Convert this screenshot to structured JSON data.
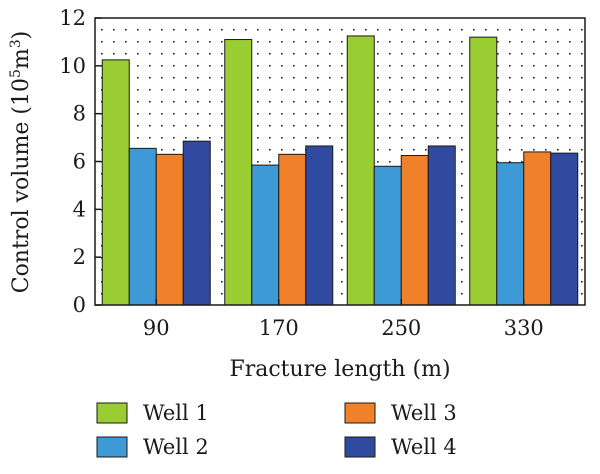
{
  "chart_data": {
    "type": "bar",
    "xlabel": "Fracture length (m)",
    "ylabel_main": "Control volume (10",
    "ylabel_sup1": "5",
    "ylabel_mid": "m",
    "ylabel_sup2": "3",
    "ylabel_end": ")",
    "categories": [
      "90",
      "170",
      "250",
      "330"
    ],
    "series": [
      {
        "name": "Well 1",
        "color": "#9acd32",
        "values": [
          10.25,
          11.1,
          11.25,
          11.2
        ]
      },
      {
        "name": "Well 2",
        "color": "#3d9ad6",
        "values": [
          6.55,
          5.85,
          5.8,
          5.95
        ]
      },
      {
        "name": "Well 3",
        "color": "#f0802a",
        "values": [
          6.3,
          6.3,
          6.25,
          6.4
        ]
      },
      {
        "name": "Well 4",
        "color": "#2f4a9e",
        "values": [
          6.85,
          6.65,
          6.65,
          6.35
        ]
      }
    ],
    "ylim": [
      0,
      12
    ],
    "yticks": [
      "0",
      "2",
      "4",
      "6",
      "8",
      "10",
      "12"
    ],
    "grid": false,
    "background": "dotted",
    "legend_position": "bottom"
  }
}
